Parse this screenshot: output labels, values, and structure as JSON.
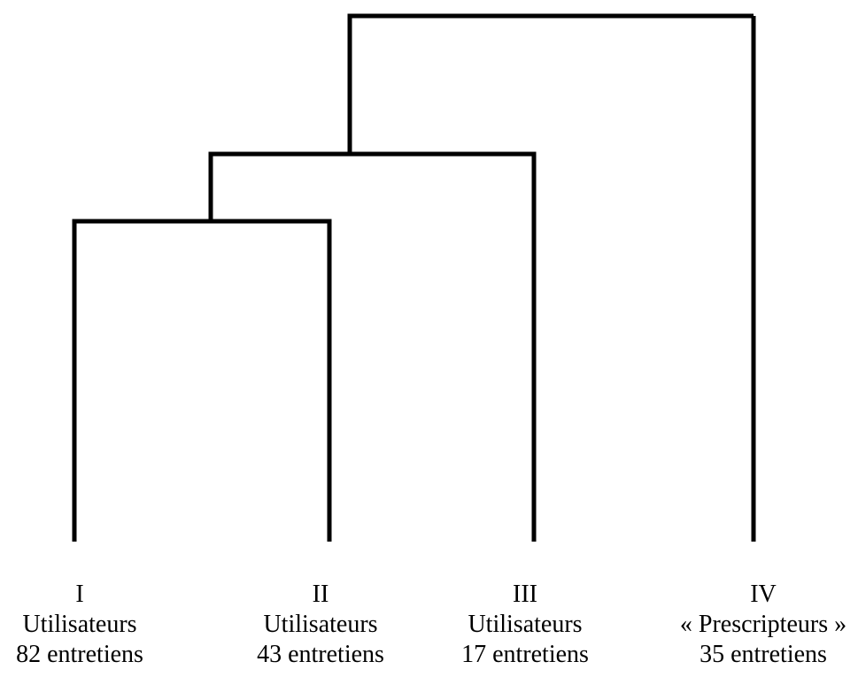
{
  "clusters": [
    {
      "id": "I",
      "label": "Utilisateurs",
      "count": "82 entretiens"
    },
    {
      "id": "II",
      "label": "Utilisateurs",
      "count": "43 entretiens"
    },
    {
      "id": "III",
      "label": "Utilisateurs",
      "count": "17 entretiens"
    },
    {
      "id": "IV",
      "label": "« Prescripteurs »",
      "count": "35 entretiens"
    }
  ],
  "merges": [
    {
      "left": "I",
      "right": "II",
      "level": 3
    },
    {
      "left": "I+II",
      "right": "III",
      "level": 2
    },
    {
      "left": "I+II+III",
      "right": "IV",
      "level": 1
    }
  ],
  "colors": {
    "lines": "#000000",
    "background": "#ffffff"
  }
}
